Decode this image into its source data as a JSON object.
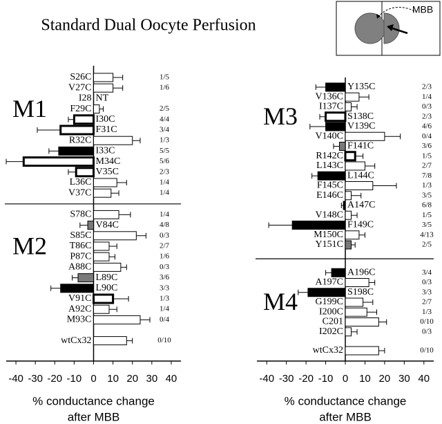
{
  "title": "Standard Dual Oocyte Perfusion",
  "inset_label": "MBB",
  "fills": {
    "open": "#ffffff",
    "bold": "#ffffff",
    "black": "#000000",
    "gray": "#7a7a7a"
  },
  "chart_data": [
    {
      "type": "bar",
      "orientation": "horizontal",
      "xlim": [
        -45,
        45
      ],
      "xticks": [
        -40,
        -30,
        -20,
        -10,
        0,
        10,
        20,
        30,
        40
      ],
      "xlabel": [
        "% conductance change",
        "after MBB"
      ],
      "groups": [
        {
          "label": "M1",
          "categories": [
            "S26C",
            "V27C",
            "I28",
            "F29C",
            "I30C",
            "F31C",
            "R32C",
            "I33C",
            "M34C",
            "V35C",
            "L36C",
            "V37C"
          ],
          "values": [
            10,
            10,
            null,
            3,
            -10,
            -17,
            20,
            -18,
            -36,
            -9,
            12,
            9
          ],
          "errors": [
            5,
            5,
            null,
            2,
            3,
            12,
            4,
            5,
            9,
            4,
            5,
            4
          ],
          "styles": [
            "open",
            "open",
            null,
            "open",
            "bold",
            "bold",
            "open",
            "black",
            "bold",
            "bold",
            "open",
            "open"
          ],
          "value_labels": [
            null,
            null,
            "NT",
            null,
            null,
            null,
            null,
            null,
            null,
            null,
            null,
            null
          ],
          "fractions": [
            "1/5",
            "1/6",
            null,
            "2/5",
            "4/4",
            "3/4",
            "1/3",
            "5/5",
            "5/6",
            "2/3",
            "1/4",
            "1/4"
          ]
        },
        {
          "label": "M2",
          "categories": [
            "S78C",
            "V84C",
            "S85C",
            "T86C",
            "P87C",
            "A88C",
            "L89C",
            "L90C",
            "V91C",
            "A92C",
            "M93C"
          ],
          "values": [
            13,
            -3,
            22,
            8,
            8,
            14,
            -8,
            -17,
            10,
            8,
            24
          ],
          "errors": [
            6,
            4,
            5,
            4,
            3,
            3,
            3,
            5,
            8,
            4,
            5
          ],
          "styles": [
            "open",
            "gray",
            "open",
            "open",
            "open",
            "open",
            "gray",
            "black",
            "bold",
            "open",
            "open"
          ],
          "fractions": [
            "1/4",
            "4/8",
            "0/3",
            "2/7",
            "1/6",
            "0/3",
            "3/6",
            "3/3",
            "1/3",
            "1/4",
            "0/4"
          ]
        },
        {
          "categories": [
            "wtCx32"
          ],
          "values": [
            17
          ],
          "errors": [
            3
          ],
          "styles": [
            "open"
          ],
          "fractions": [
            "0/10"
          ]
        }
      ]
    },
    {
      "type": "bar",
      "orientation": "horizontal",
      "xlim": [
        -45,
        45
      ],
      "xticks": [
        -40,
        -30,
        -20,
        -10,
        0,
        10,
        20,
        30,
        40
      ],
      "xlabel": [
        "% conductance change",
        "after MBB"
      ],
      "groups": [
        {
          "label": "M3",
          "categories": [
            "Y135C",
            "V136C",
            "I137C",
            "S138C",
            "V139C",
            "V140C",
            "F141C",
            "R142C",
            "L143C",
            "L144C",
            "F145C",
            "E146C",
            "A147C",
            "V148C",
            "F149C",
            "M150C",
            "Y151C"
          ],
          "values": [
            -10,
            7,
            3,
            -10,
            -10,
            20,
            -3,
            5,
            10,
            -14,
            14,
            3,
            -1,
            3,
            -27,
            7,
            3
          ],
          "errors": [
            5,
            5,
            3,
            3,
            8,
            8,
            3,
            4,
            5,
            3,
            12,
            5,
            1,
            3,
            12,
            3,
            2
          ],
          "styles": [
            "black",
            "open",
            "open",
            "bold",
            "black",
            "open",
            "gray",
            "bold",
            "open",
            "black",
            "open",
            "open",
            "black",
            "open",
            "black",
            "open",
            "gray"
          ],
          "fractions": [
            "2/3",
            "1/4",
            "0/3",
            "2/3",
            "4/6",
            "0/4",
            "3/6",
            "1/5",
            "2/7",
            "7/8",
            "1/3",
            "3/5",
            "6/8",
            "1/5",
            "3/5",
            "4/13",
            "2/5"
          ]
        },
        {
          "label": "M4",
          "categories": [
            "A196C",
            "A197C",
            "S198C",
            "G199C",
            "I200C",
            "C201",
            "I202C"
          ],
          "values": [
            -7,
            12,
            -19,
            9,
            11,
            17,
            3
          ],
          "errors": [
            3,
            3,
            5,
            5,
            5,
            4,
            3
          ],
          "styles": [
            "black",
            "open",
            "black",
            "open",
            "open",
            "open",
            "open"
          ],
          "fractions": [
            "3/4",
            "0/3",
            "3/3",
            "2/7",
            "1/3",
            "0/10",
            "0/3"
          ]
        },
        {
          "categories": [
            "wtCx32"
          ],
          "values": [
            17
          ],
          "errors": [
            3
          ],
          "styles": [
            "open"
          ],
          "fractions": [
            "0/10"
          ]
        }
      ]
    }
  ]
}
